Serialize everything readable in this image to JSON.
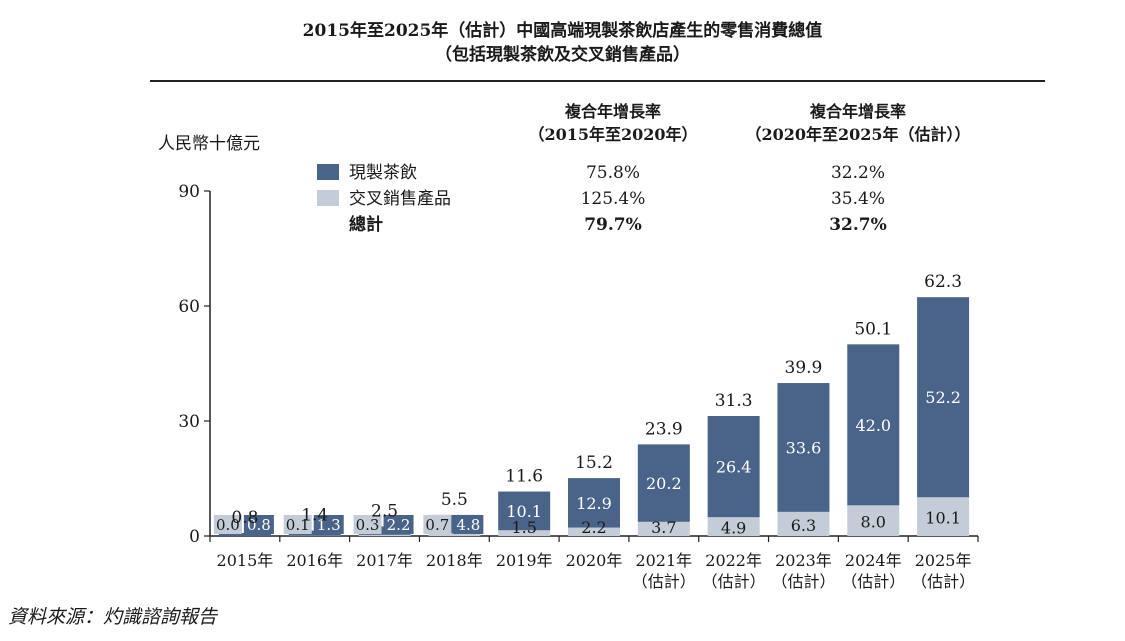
{
  "titles": {
    "line1": "2015年至2025年（估計）中國高端現製茶飲店產生的零售消費總值",
    "line2": "（包括現製茶飲及交叉銷售產品）"
  },
  "source": "資料來源：灼識諮詢報告",
  "colors": {
    "tea": "#4a6388",
    "cross": "#c3ccd7",
    "axis": "#222222",
    "text": "#1a1a1a"
  },
  "cagr_table": {
    "headers": [
      {
        "line1": "複合年增長率",
        "line2": "（2015年至2020年）"
      },
      {
        "line1": "複合年增長率",
        "line2": "（2020年至2025年（估計））"
      }
    ],
    "rows": [
      {
        "label": "現製茶飲",
        "v1": "75.8%",
        "v2": "32.2%",
        "swatch": "tea",
        "bold": false
      },
      {
        "label": "交叉銷售產品",
        "v1": "125.4%",
        "v2": "35.4%",
        "swatch": "cross",
        "bold": false
      },
      {
        "label": "總計",
        "v1": "79.7%",
        "v2": "32.7%",
        "swatch": null,
        "bold": true
      }
    ]
  },
  "chart_data": {
    "type": "bar",
    "stacked": true,
    "ylabel": "人民幣十億元",
    "ylim": [
      0,
      90
    ],
    "yticks": [
      0,
      30,
      60,
      90
    ],
    "categories": [
      [
        "2015年"
      ],
      [
        "2016年"
      ],
      [
        "2017年"
      ],
      [
        "2018年"
      ],
      [
        "2019年"
      ],
      [
        "2020年"
      ],
      [
        "2021年",
        "（估計）"
      ],
      [
        "2022年",
        "（估計）"
      ],
      [
        "2023年",
        "（估計）"
      ],
      [
        "2024年",
        "（估計）"
      ],
      [
        "2025年",
        "（估計）"
      ]
    ],
    "series": [
      {
        "name": "交叉銷售產品",
        "color_key": "cross",
        "values": [
          0.0,
          0.1,
          0.3,
          0.7,
          1.5,
          2.2,
          3.7,
          4.9,
          6.3,
          8.0,
          10.1
        ]
      },
      {
        "name": "現製茶飲",
        "color_key": "tea",
        "values": [
          0.8,
          1.3,
          2.2,
          4.8,
          10.1,
          12.9,
          20.2,
          26.4,
          33.6,
          42.0,
          52.2
        ]
      }
    ],
    "totals": [
      0.8,
      1.4,
      2.5,
      5.5,
      11.6,
      15.2,
      23.9,
      31.3,
      39.9,
      50.1,
      62.3
    ],
    "value_labels": {
      "cross": [
        "0.0",
        "0.1",
        "0.3",
        "0.7",
        "1.5",
        "2.2",
        "3.7",
        "4.9",
        "6.3",
        "8.0",
        "10.1"
      ],
      "tea": [
        "0.8",
        "1.3",
        "2.2",
        "4.8",
        "10.1",
        "12.9",
        "20.2",
        "26.4",
        "33.6",
        "42.0",
        "52.2"
      ],
      "totals": [
        "0.8",
        "1.4",
        "2.5",
        "5.5",
        "11.6",
        "15.2",
        "23.9",
        "31.3",
        "39.9",
        "50.1",
        "62.3"
      ]
    },
    "legend": [
      "現製茶飲",
      "交叉銷售產品",
      "總計"
    ],
    "legend_placement": "top-left",
    "grid": false
  }
}
